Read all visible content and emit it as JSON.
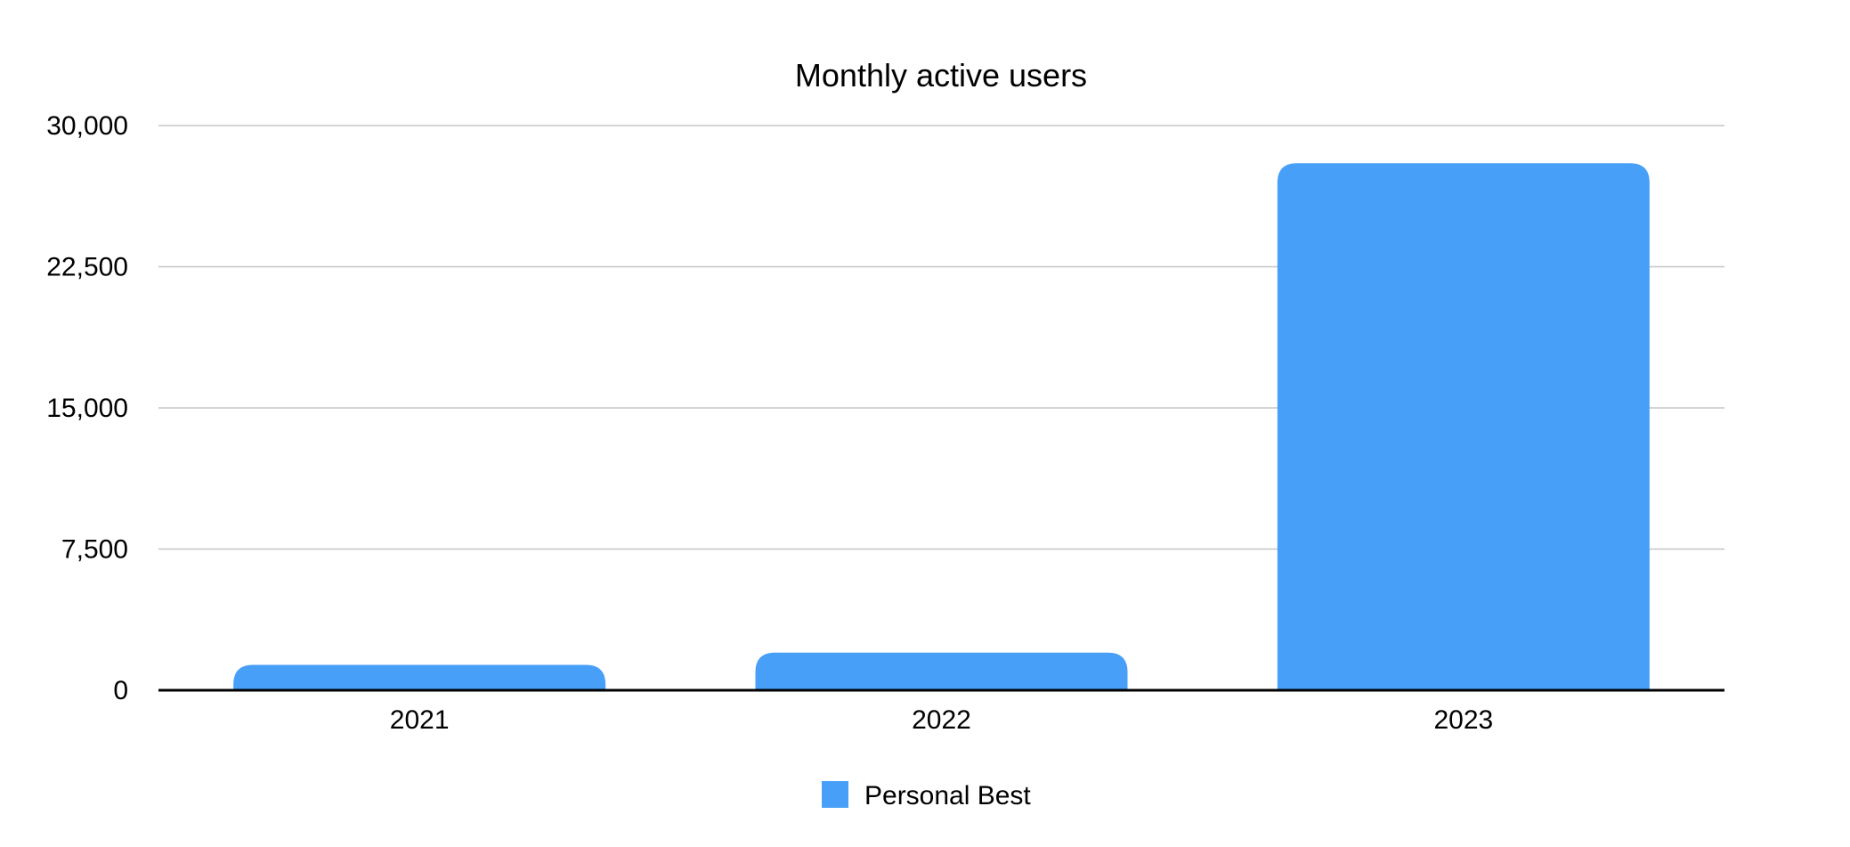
{
  "chart_data": {
    "type": "bar",
    "title": "Monthly active users",
    "xlabel": "",
    "ylabel": "",
    "categories": [
      "2021",
      "2022",
      "2023"
    ],
    "series": [
      {
        "name": "Personal Best",
        "values": [
          1350,
          2000,
          28000
        ]
      }
    ],
    "ylim": [
      0,
      30000
    ],
    "yticks": [
      0,
      7500,
      15000,
      22500,
      30000
    ],
    "ytick_labels": [
      "0",
      "7,500",
      "15,000",
      "22,500",
      "30,000"
    ],
    "grid": true,
    "legend_position": "bottom-center",
    "colors": {
      "series": "#479ff8",
      "axis": "#000000",
      "grid": "#c6c6c6"
    }
  }
}
